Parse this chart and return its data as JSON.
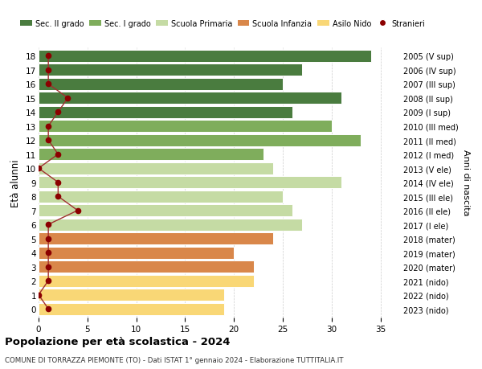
{
  "ages": [
    0,
    1,
    2,
    3,
    4,
    5,
    6,
    7,
    8,
    9,
    10,
    11,
    12,
    13,
    14,
    15,
    16,
    17,
    18
  ],
  "right_labels": [
    "2023 (nido)",
    "2022 (nido)",
    "2021 (nido)",
    "2020 (mater)",
    "2019 (mater)",
    "2018 (mater)",
    "2017 (I ele)",
    "2016 (II ele)",
    "2015 (III ele)",
    "2014 (IV ele)",
    "2013 (V ele)",
    "2012 (I med)",
    "2011 (II med)",
    "2010 (III med)",
    "2009 (I sup)",
    "2008 (II sup)",
    "2007 (III sup)",
    "2006 (IV sup)",
    "2005 (V sup)"
  ],
  "bar_values": [
    19,
    19,
    22,
    22,
    20,
    24,
    27,
    26,
    25,
    31,
    24,
    23,
    33,
    30,
    26,
    31,
    25,
    27,
    34
  ],
  "stranieri": [
    1,
    0,
    1,
    1,
    1,
    1,
    1,
    4,
    2,
    2,
    0,
    2,
    1,
    1,
    2,
    3,
    1,
    1,
    1
  ],
  "bar_colors": {
    "nido": "#f9d776",
    "mater": "#d9874a",
    "ele": "#c5dba4",
    "med": "#7fad5c",
    "sup": "#4a7c3f"
  },
  "stranieri_color": "#8b0000",
  "stranieri_line_color": "#a03030",
  "legend_labels": [
    "Sec. II grado",
    "Sec. I grado",
    "Scuola Primaria",
    "Scuola Infanzia",
    "Asilo Nido",
    "Stranieri"
  ],
  "legend_colors": [
    "#4a7c3f",
    "#7fad5c",
    "#c5dba4",
    "#d9874a",
    "#f9d776",
    "#8b0000"
  ],
  "ylabel": "Età alunni",
  "right_ylabel": "Anni di nascita",
  "title": "Popolazione per età scolastica - 2024",
  "subtitle": "COMUNE DI TORRAZZA PIEMONTE (TO) - Dati ISTAT 1° gennaio 2024 - Elaborazione TUTTITALIA.IT",
  "xlim": [
    0,
    37
  ],
  "bar_height": 0.85,
  "background_color": "#ffffff",
  "grid_color": "#cccccc"
}
